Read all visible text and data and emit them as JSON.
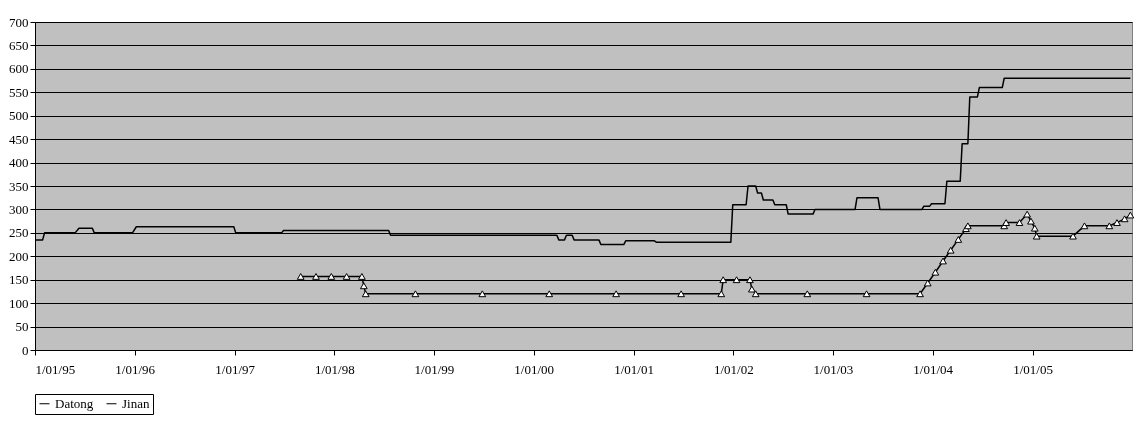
{
  "chart_data": {
    "type": "line",
    "xlim": [
      "1995-01-01",
      "2005-12-31"
    ],
    "ylim": [
      0,
      700
    ],
    "xticks": [
      {
        "value": "1995-01-01",
        "label": "1/01/95"
      },
      {
        "value": "1996-01-01",
        "label": "1/01/96"
      },
      {
        "value": "1997-01-01",
        "label": "1/01/97"
      },
      {
        "value": "1998-01-01",
        "label": "1/01/98"
      },
      {
        "value": "1999-01-01",
        "label": "1/01/99"
      },
      {
        "value": "2000-01-01",
        "label": "1/01/00"
      },
      {
        "value": "2001-01-01",
        "label": "1/01/01"
      },
      {
        "value": "2002-01-01",
        "label": "1/01/02"
      },
      {
        "value": "2003-01-01",
        "label": "1/01/03"
      },
      {
        "value": "2004-01-01",
        "label": "1/01/04"
      },
      {
        "value": "2005-01-01",
        "label": "1/01/05"
      }
    ],
    "yticks": [
      0,
      50,
      100,
      150,
      200,
      250,
      300,
      350,
      400,
      450,
      500,
      550,
      600,
      650,
      700
    ],
    "grid": "y",
    "legend": "bottom",
    "line_style": "solid",
    "series": [
      {
        "name": "Datong",
        "color": "#000000",
        "marker": "triangle",
        "x": [
          "1997-08-31",
          "1997-10-26",
          "1997-12-21",
          "1998-02-15",
          "1998-04-12",
          "1998-04-19",
          "1998-04-26",
          "1998-10-25",
          "1999-06-27",
          "2000-02-27",
          "2000-10-29",
          "2001-06-24",
          "2001-11-18",
          "2001-11-25",
          "2002-01-13",
          "2002-03-03",
          "2002-03-10",
          "2002-03-24",
          "2002-09-29",
          "2003-05-04",
          "2003-11-16",
          "2003-12-14",
          "2004-01-11",
          "2004-02-08",
          "2004-03-07",
          "2004-04-04",
          "2004-05-02",
          "2004-05-09",
          "2004-09-19",
          "2004-09-26",
          "2004-11-14",
          "2004-12-12",
          "2004-12-26",
          "2005-01-09",
          "2005-01-16",
          "2005-05-29",
          "2005-07-10",
          "2005-10-09",
          "2005-11-06",
          "2005-12-04",
          "2005-12-25"
        ],
        "values": [
          157,
          157,
          157,
          157,
          157,
          137,
          120,
          120,
          120,
          120,
          120,
          120,
          120,
          150,
          150,
          150,
          130,
          120,
          120,
          120,
          120,
          143,
          166,
          190,
          213,
          236,
          259,
          265,
          265,
          272,
          272,
          290,
          275,
          260,
          243,
          243,
          265,
          265,
          272,
          280,
          288
        ]
      },
      {
        "name": "Jinan",
        "color": "#000000",
        "marker": "none",
        "x": [
          "1995-01-01",
          "1995-01-29",
          "1995-02-05",
          "1995-05-28",
          "1995-06-11",
          "1995-07-30",
          "1995-08-06",
          "1995-12-24",
          "1996-01-07",
          "1996-12-29",
          "1997-01-05",
          "1997-06-22",
          "1997-06-29",
          "1998-07-19",
          "1998-07-26",
          "2000-03-26",
          "2000-04-02",
          "2000-04-23",
          "2000-04-30",
          "2000-05-21",
          "2000-05-28",
          "2000-08-27",
          "2000-09-03",
          "2000-11-26",
          "2000-12-03",
          "2001-03-18",
          "2001-03-25",
          "2001-12-23",
          "2001-12-30",
          "2002-02-17",
          "2002-02-24",
          "2002-03-24",
          "2002-03-31",
          "2002-04-14",
          "2002-04-21",
          "2002-05-26",
          "2002-06-02",
          "2002-07-14",
          "2002-07-21",
          "2002-10-20",
          "2002-10-27",
          "2003-03-23",
          "2003-03-30",
          "2003-06-15",
          "2003-06-22",
          "2003-11-23",
          "2003-11-30",
          "2003-12-21",
          "2003-12-28",
          "2004-02-15",
          "2004-02-22",
          "2004-04-11",
          "2004-04-18",
          "2004-05-09",
          "2004-05-16",
          "2004-06-13",
          "2004-06-20",
          "2004-09-12",
          "2004-09-19",
          "2005-12-25"
        ],
        "values": [
          235,
          235,
          250,
          250,
          260,
          260,
          250,
          250,
          263,
          263,
          250,
          250,
          255,
          255,
          245,
          245,
          235,
          235,
          245,
          245,
          235,
          235,
          225,
          225,
          233,
          233,
          230,
          230,
          310,
          310,
          350,
          350,
          335,
          335,
          320,
          320,
          310,
          310,
          290,
          290,
          300,
          300,
          325,
          325,
          300,
          300,
          307,
          307,
          312,
          312,
          360,
          360,
          440,
          440,
          540,
          540,
          560,
          560,
          580,
          580
        ]
      }
    ]
  }
}
